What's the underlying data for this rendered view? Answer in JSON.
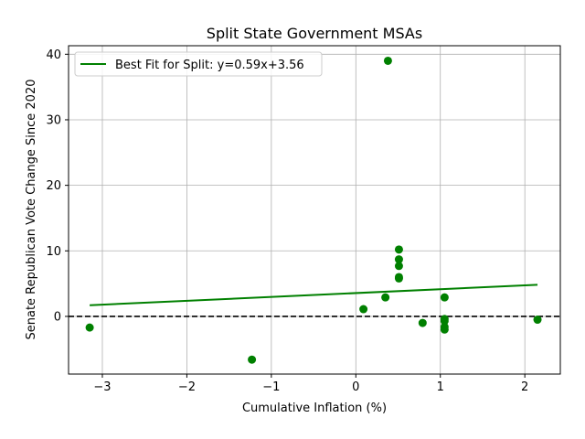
{
  "chart_data": {
    "type": "scatter",
    "title": "Split State Government MSAs",
    "xlabel": "Cumulative Inflation (%)",
    "ylabel": "Senate Republican Vote Change Since 2020",
    "xlim": [
      -3.4,
      2.42
    ],
    "ylim": [
      -8.8,
      41.3
    ],
    "xticks": [
      -3,
      -2,
      -1,
      0,
      1,
      2
    ],
    "yticks": [
      0,
      10,
      20,
      30,
      40
    ],
    "grid": true,
    "legend_position": "top-left",
    "points_color": "#008000",
    "line_color": "#008000",
    "reference_line": {
      "y": 0,
      "style": "dashed",
      "color": "#000000"
    },
    "fit_line": {
      "name": "Best Fit for Split: y=0.59x+3.56",
      "slope": 0.59,
      "intercept": 3.56,
      "x_range": [
        -3.15,
        2.15
      ]
    },
    "points": [
      {
        "x": 0.38,
        "y": 39.0
      },
      {
        "x": 0.51,
        "y": 10.2
      },
      {
        "x": 0.51,
        "y": 8.7
      },
      {
        "x": 0.51,
        "y": 7.7
      },
      {
        "x": 0.51,
        "y": 6.0
      },
      {
        "x": 0.51,
        "y": 5.8
      },
      {
        "x": 0.35,
        "y": 2.9
      },
      {
        "x": 1.05,
        "y": 2.9
      },
      {
        "x": 0.09,
        "y": 1.1
      },
      {
        "x": 1.05,
        "y": -0.4
      },
      {
        "x": 1.05,
        "y": -0.7
      },
      {
        "x": 0.79,
        "y": -1.0
      },
      {
        "x": 1.05,
        "y": -1.6
      },
      {
        "x": 1.05,
        "y": -2.0
      },
      {
        "x": 2.15,
        "y": -0.5
      },
      {
        "x": -3.15,
        "y": -1.7
      },
      {
        "x": -1.23,
        "y": -6.6
      }
    ]
  }
}
